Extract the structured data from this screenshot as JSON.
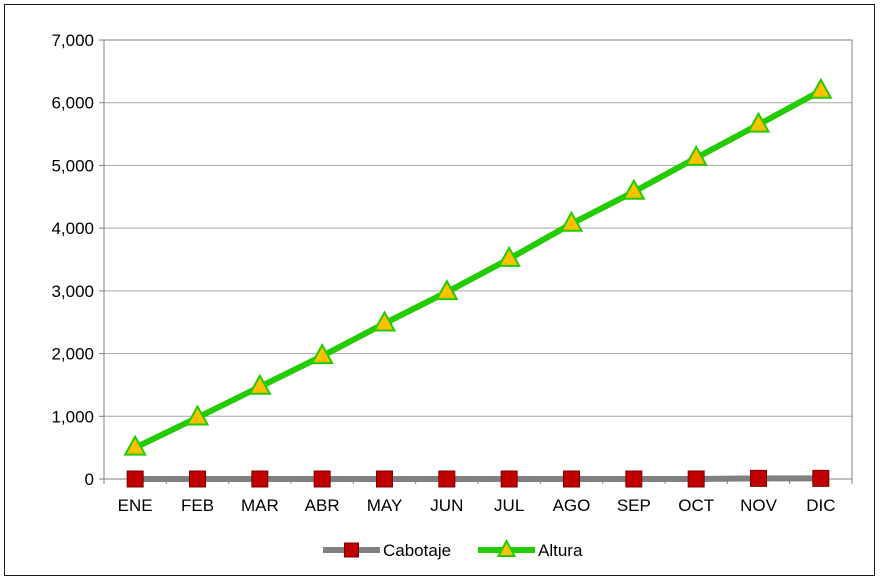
{
  "chart_data": {
    "type": "line",
    "categories": [
      "ENE",
      "FEB",
      "MAR",
      "ABR",
      "MAY",
      "JUN",
      "JUL",
      "AGO",
      "SEP",
      "OCT",
      "NOV",
      "DIC"
    ],
    "series": [
      {
        "name": "Cabotaje",
        "values": [
          0,
          0,
          0,
          0,
          0,
          0,
          0,
          0,
          0,
          0,
          10,
          10
        ],
        "line_color": "#808080",
        "marker": "square",
        "marker_color": "#c00000"
      },
      {
        "name": "Altura",
        "values": [
          500,
          980,
          1470,
          1960,
          2480,
          2980,
          3510,
          4070,
          4580,
          5120,
          5650,
          6190
        ],
        "line_color": "#22cc00",
        "marker": "triangle",
        "marker_color": "#ffc000"
      }
    ],
    "ylim": [
      0,
      7000
    ],
    "yticks": [
      0,
      1000,
      2000,
      3000,
      4000,
      5000,
      6000,
      7000
    ],
    "ytick_labels": [
      "0",
      "1,000",
      "2,000",
      "3,000",
      "4,000",
      "5,000",
      "6,000",
      "7,000"
    ],
    "grid": true,
    "legend_position": "bottom"
  }
}
